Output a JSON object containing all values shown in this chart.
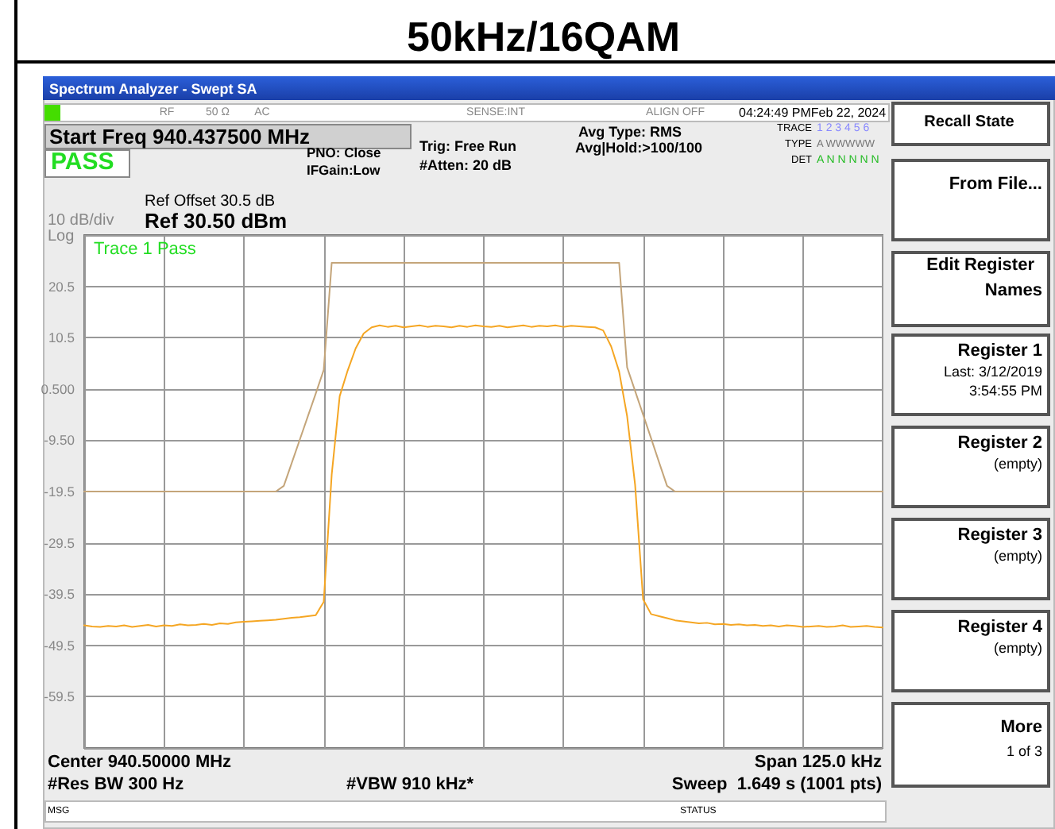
{
  "chart_data": {
    "type": "line",
    "title": "50kHz/16QAM",
    "annotations": [
      "Spectrum Analyzer - Swept SA",
      "RF",
      "50 Ω",
      "AC",
      "SENSE:INT",
      "ALIGN OFF",
      "04:24:49 PMFeb 22, 2024",
      "Start Freq 940.437500 MHz",
      "PASS",
      "PNO: Close",
      "IFGain:Low",
      "Trig: Free Run",
      "#Atten: 20 dB",
      "Avg Type: RMS",
      "Avg|Hold:>100/100",
      "TRACE",
      "1 2 3 4 5 6",
      "TYPE",
      "A WWWWW",
      "DET",
      "A N N N N N",
      "Ref Offset 30.5 dB",
      "Ref 30.50 dBm",
      "10 dB/div",
      "Log",
      "Trace 1 Pass",
      "Center 940.50000 MHz",
      "Span 125.0 kHz",
      "#Res BW 300 Hz",
      "#VBW 910 kHz*",
      "Sweep  1.649 s (1001 pts)",
      "MSG",
      "STATUS",
      "Recall State",
      "From File...",
      "Edit Register",
      "Names",
      "Register 1",
      "Last: 3/12/2019",
      "3:54:55 PM",
      "Register 2",
      "(empty)",
      "Register 3",
      "(empty)",
      "Register 4",
      "(empty)",
      "More",
      "1 of 3"
    ],
    "categories": [
      null,
      null,
      null,
      null,
      null,
      null,
      null,
      null,
      null,
      null,
      null,
      null,
      null,
      null,
      null,
      null,
      null,
      null,
      null,
      null,
      null,
      null,
      null,
      null,
      null,
      null,
      null,
      null,
      null,
      null,
      null,
      null,
      null,
      null,
      null,
      null,
      null,
      null,
      null,
      null,
      null,
      null,
      null,
      null,
      null,
      null,
      null,
      null,
      null,
      null,
      null,
      null,
      null,
      null,
      null,
      null,
      null,
      null,
      null,
      null,
      null,
      null,
      null,
      null,
      null,
      null,
      null,
      null,
      null,
      null,
      null,
      null,
      null,
      null,
      null,
      null,
      null,
      null,
      null,
      null,
      null,
      null,
      null,
      null,
      null,
      null,
      null,
      null,
      null,
      null,
      null,
      null,
      null,
      null,
      null,
      null,
      null,
      null,
      null,
      null,
      null
    ],
    "ylim": [
      -69.5,
      30.5
    ],
    "yticks": [
      {
        "value": -69.5,
        "label": null
      },
      -59.5,
      -49.5,
      -39.5,
      -29.5,
      -19.5,
      {
        "value": -9.5,
        "label": "-9.50"
      },
      {
        "value": 0.5,
        "label": "0.500"
      },
      10.5,
      20.5,
      {
        "value": 30.5,
        "label": null
      }
    ],
    "tick_labels": "y",
    "grid": true,
    "line_style": "solid",
    "series": [
      {
        "color": "#c4a57a",
        "values": [
          -19.5,
          -19.5,
          -19.5,
          -19.5,
          -19.5,
          -19.5,
          -19.5,
          -19.5,
          -19.5,
          -19.5,
          -19.5,
          -19.5,
          -19.5,
          -19.5,
          -19.5,
          -19.5,
          -19.5,
          -19.5,
          -19.5,
          -19.5,
          -19.5,
          -19.5,
          -19.5,
          -19.5,
          -19.5,
          -18.4,
          -13.9,
          -9.4,
          -4.9,
          -0.4,
          4.2,
          25.1,
          25.1,
          25.1,
          25.1,
          25.1,
          25.1,
          25.1,
          25.1,
          25.1,
          25.1,
          25.1,
          25.1,
          25.1,
          25.1,
          25.1,
          25.1,
          25.1,
          25.1,
          25.1,
          25.1,
          25.1,
          25.1,
          25.1,
          25.1,
          25.1,
          25.1,
          25.1,
          25.1,
          25.1,
          25.1,
          25.1,
          25.1,
          25.1,
          25.1,
          25.1,
          25.1,
          25.1,
          4.7,
          0.1,
          -4.5,
          -9.1,
          -13.8,
          -18.4,
          -19.5,
          -19.5,
          -19.5,
          -19.5,
          -19.5,
          -19.5,
          -19.5,
          -19.5,
          -19.5,
          -19.5,
          -19.5,
          -19.5,
          -19.5,
          -19.5,
          -19.5,
          -19.5,
          -19.5,
          -19.5,
          -19.5,
          -19.5,
          -19.5,
          -19.5,
          -19.5,
          -19.5,
          -19.5,
          -19.5,
          -19.5
        ]
      },
      {
        "color": "#f5a623",
        "values": [
          -45.6,
          -45.8,
          -45.9,
          -45.7,
          -45.8,
          -45.6,
          -45.9,
          -45.7,
          -45.5,
          -45.8,
          -45.6,
          -45.7,
          -45.4,
          -45.6,
          -45.5,
          -45.3,
          -45.5,
          -45.2,
          -45.3,
          -45.0,
          -44.9,
          -44.8,
          -44.7,
          -44.6,
          -44.5,
          -44.3,
          -44.1,
          -44.0,
          -43.8,
          -43.6,
          -41.0,
          -16.2,
          -0.9,
          4.1,
          8.4,
          11.3,
          12.5,
          12.9,
          12.6,
          12.8,
          12.5,
          12.7,
          12.9,
          12.6,
          12.8,
          12.7,
          12.5,
          12.8,
          12.6,
          12.9,
          12.7,
          12.6,
          12.8,
          12.5,
          12.7,
          12.9,
          12.6,
          12.8,
          12.7,
          12.9,
          12.6,
          12.8,
          12.7,
          12.6,
          12.5,
          11.9,
          8.8,
          3.9,
          -4.8,
          -18.2,
          -40.5,
          -43.4,
          -43.8,
          -44.2,
          -44.6,
          -44.8,
          -45.0,
          -45.2,
          -45.1,
          -45.4,
          -45.3,
          -45.5,
          -45.4,
          -45.6,
          -45.5,
          -45.7,
          -45.6,
          -45.8,
          -45.6,
          -45.7,
          -45.9,
          -45.8,
          -45.7,
          -45.9,
          -45.8,
          -45.6,
          -45.9,
          -45.8,
          -45.7,
          -45.9,
          -46.0
        ]
      }
    ]
  }
}
